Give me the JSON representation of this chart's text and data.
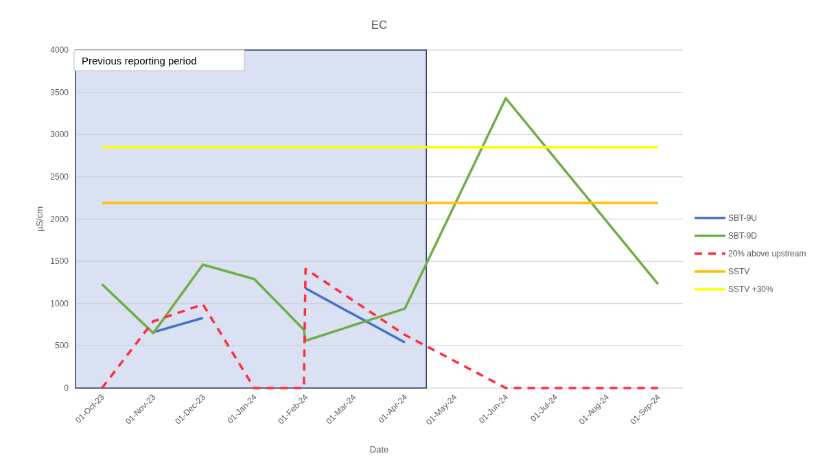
{
  "chart_data": {
    "type": "line",
    "title": "EC",
    "xlabel": "Date",
    "ylabel": "µS/cm",
    "xlim": [
      "2023-09-15",
      "2024-09-16"
    ],
    "ylim": [
      0,
      4000
    ],
    "yticks": [
      0,
      500,
      1000,
      1500,
      2000,
      2500,
      3000,
      3500,
      4000
    ],
    "xticks": [
      {
        "value": "2023-10-01",
        "label": "01-Oct-23"
      },
      {
        "value": "2023-11-01",
        "label": "01-Nov-23"
      },
      {
        "value": "2023-12-01",
        "label": "01-Dec-23"
      },
      {
        "value": "2024-01-01",
        "label": "01-Jan-24"
      },
      {
        "value": "2024-02-01",
        "label": "01-Feb-24"
      },
      {
        "value": "2024-03-01",
        "label": "01-Mar-24"
      },
      {
        "value": "2024-04-01",
        "label": "01-Apr-24"
      },
      {
        "value": "2024-05-01",
        "label": "01-May-24"
      },
      {
        "value": "2024-06-01",
        "label": "01-Jun-24"
      },
      {
        "value": "2024-07-01",
        "label": "01-Jul-24"
      },
      {
        "value": "2024-08-01",
        "label": "01-Aug-24"
      },
      {
        "value": "2024-09-01",
        "label": "01-Sep-24"
      }
    ],
    "grid": "y",
    "legend": "right",
    "bands": [
      {
        "axis": "x",
        "from": "2023-09-15",
        "to": "2024-04-14",
        "label": "Previous reporting period",
        "color": "#d9e1f2"
      }
    ],
    "series": [
      {
        "name": "SBT-9U",
        "color": "#4472c4",
        "x": [
          "2023-11-01",
          "2023-12-01",
          "2024-01-01",
          "2024-02-01",
          "2024-04-01"
        ],
        "values": [
          660,
          830,
          null,
          1180,
          540
        ]
      },
      {
        "name": "SBT-9D",
        "color": "#70ad47",
        "x": [
          "2023-10-01",
          "2023-11-01",
          "2023-12-01",
          "2024-01-01",
          "2024-01-31",
          "2024-02-01",
          "2024-04-01",
          "2024-06-01",
          "2024-09-01"
        ],
        "values": [
          1230,
          650,
          1460,
          1290,
          690,
          560,
          940,
          3430,
          1230
        ]
      },
      {
        "name": "20% above upstream",
        "color": "#ff2d3f",
        "line_style": "dashed",
        "x": [
          "2023-10-01",
          "2023-11-01",
          "2023-12-01",
          "2024-01-01",
          "2024-01-31",
          "2024-02-01",
          "2024-04-01",
          "2024-06-01",
          "2024-07-01",
          "2024-08-01",
          "2024-09-01"
        ],
        "values": [
          0,
          790,
          990,
          0,
          0,
          1410,
          630,
          0,
          0,
          0,
          0
        ]
      },
      {
        "name": "SSTV",
        "color": "#ffc000",
        "x": [
          "2023-10-01",
          "2024-09-01"
        ],
        "values": [
          2190,
          2190
        ]
      },
      {
        "name": "SSTV +30%",
        "color": "#ffff00",
        "x": [
          "2023-10-01",
          "2024-09-01"
        ],
        "values": [
          2850,
          2850
        ]
      }
    ]
  }
}
